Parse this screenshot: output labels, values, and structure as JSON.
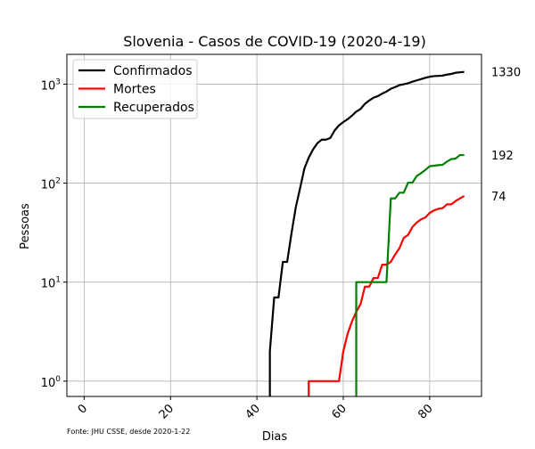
{
  "chart_data": {
    "type": "line",
    "title": "Slovenia - Casos de COVID-19 (2020-4-19)",
    "xlabel": "Dias",
    "ylabel": "Pessoas",
    "yscale": "log",
    "xlim": [
      -4,
      92
    ],
    "ylim": [
      0.7,
      2000
    ],
    "grid": true,
    "legend": "top-left",
    "source_note": "Fonte: JHU CSSE, desde 2020-1-22",
    "x_ticks": [
      {
        "value": 0,
        "label": "0"
      },
      {
        "value": 20,
        "label": "20"
      },
      {
        "value": 40,
        "label": "40"
      },
      {
        "value": 60,
        "label": "60"
      },
      {
        "value": 80,
        "label": "80"
      }
    ],
    "y_ticks": [
      {
        "value": 1,
        "label": "10",
        "exp": "0"
      },
      {
        "value": 10,
        "label": "10",
        "exp": "1"
      },
      {
        "value": 100,
        "label": "10",
        "exp": "2"
      },
      {
        "value": 1000,
        "label": "10",
        "exp": "3"
      }
    ],
    "series": [
      {
        "name": "Confirmados",
        "color": "#000000",
        "end_label": "1330",
        "points": [
          [
            43,
            0.5
          ],
          [
            43,
            2
          ],
          [
            44,
            7
          ],
          [
            45,
            7
          ],
          [
            46,
            16
          ],
          [
            47,
            16
          ],
          [
            48,
            31
          ],
          [
            49,
            57
          ],
          [
            50,
            89
          ],
          [
            51,
            141
          ],
          [
            52,
            181
          ],
          [
            53,
            219
          ],
          [
            54,
            253
          ],
          [
            55,
            275
          ],
          [
            56,
            275
          ],
          [
            57,
            286
          ],
          [
            58,
            341
          ],
          [
            59,
            383
          ],
          [
            60,
            414
          ],
          [
            61,
            442
          ],
          [
            62,
            480
          ],
          [
            63,
            528
          ],
          [
            64,
            562
          ],
          [
            65,
            632
          ],
          [
            66,
            684
          ],
          [
            67,
            730
          ],
          [
            68,
            756
          ],
          [
            69,
            802
          ],
          [
            70,
            841
          ],
          [
            71,
            897
          ],
          [
            72,
            934
          ],
          [
            73,
            977
          ],
          [
            74,
            997
          ],
          [
            75,
            1021
          ],
          [
            76,
            1059
          ],
          [
            77,
            1091
          ],
          [
            78,
            1124
          ],
          [
            79,
            1160
          ],
          [
            80,
            1188
          ],
          [
            81,
            1205
          ],
          [
            82,
            1212
          ],
          [
            83,
            1220
          ],
          [
            84,
            1248
          ],
          [
            85,
            1268
          ],
          [
            86,
            1304
          ],
          [
            87,
            1317
          ],
          [
            88,
            1330
          ]
        ]
      },
      {
        "name": "Mortes",
        "color": "#ff0000",
        "end_label": "74",
        "points": [
          [
            52,
            0.5
          ],
          [
            52,
            1
          ],
          [
            53,
            1
          ],
          [
            54,
            1
          ],
          [
            55,
            1
          ],
          [
            56,
            1
          ],
          [
            57,
            1
          ],
          [
            58,
            1
          ],
          [
            59,
            1
          ],
          [
            60,
            2
          ],
          [
            61,
            3
          ],
          [
            62,
            4
          ],
          [
            63,
            5
          ],
          [
            64,
            6
          ],
          [
            65,
            9
          ],
          [
            66,
            9
          ],
          [
            67,
            11
          ],
          [
            68,
            11
          ],
          [
            69,
            15
          ],
          [
            70,
            15
          ],
          [
            71,
            16
          ],
          [
            72,
            19
          ],
          [
            73,
            22
          ],
          [
            74,
            28
          ],
          [
            75,
            30
          ],
          [
            76,
            36
          ],
          [
            77,
            40
          ],
          [
            78,
            43
          ],
          [
            79,
            45
          ],
          [
            80,
            50
          ],
          [
            81,
            53
          ],
          [
            82,
            55
          ],
          [
            83,
            56
          ],
          [
            84,
            61
          ],
          [
            85,
            61
          ],
          [
            86,
            66
          ],
          [
            87,
            70
          ],
          [
            88,
            74
          ]
        ]
      },
      {
        "name": "Recuperados",
        "color": "#008000",
        "end_label": "192",
        "points": [
          [
            63,
            0.5
          ],
          [
            63,
            10
          ],
          [
            64,
            10
          ],
          [
            65,
            10
          ],
          [
            66,
            10
          ],
          [
            67,
            10
          ],
          [
            68,
            10
          ],
          [
            69,
            10
          ],
          [
            70,
            10
          ],
          [
            71,
            70
          ],
          [
            72,
            70
          ],
          [
            73,
            80
          ],
          [
            74,
            80
          ],
          [
            75,
            101
          ],
          [
            76,
            101
          ],
          [
            77,
            118
          ],
          [
            78,
            126
          ],
          [
            79,
            136
          ],
          [
            80,
            148
          ],
          [
            81,
            150
          ],
          [
            82,
            152
          ],
          [
            83,
            153
          ],
          [
            84,
            165
          ],
          [
            85,
            175
          ],
          [
            86,
            177
          ],
          [
            87,
            192
          ],
          [
            88,
            192
          ]
        ]
      }
    ]
  }
}
